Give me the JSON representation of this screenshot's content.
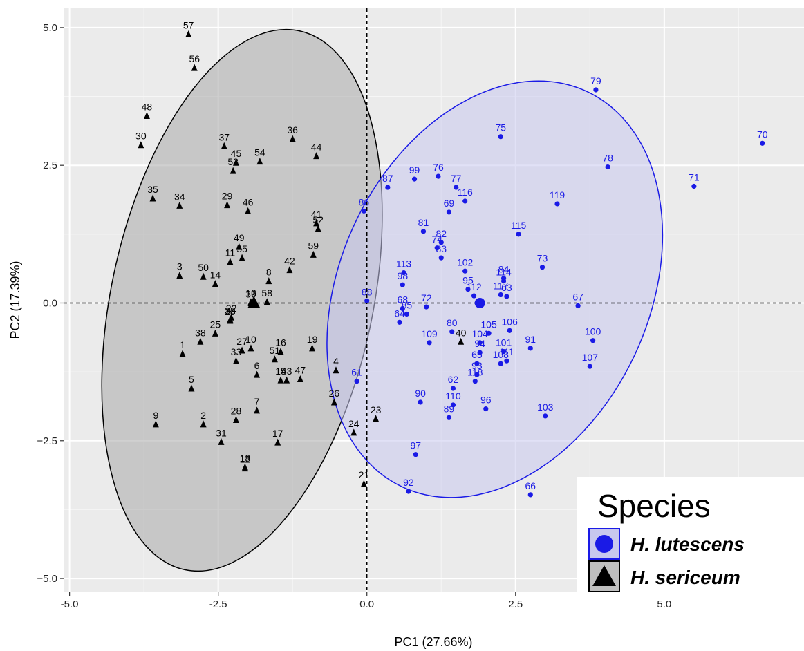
{
  "chart_data": {
    "type": "scatter",
    "xlabel": "PC1 (27.66%)",
    "ylabel": "PC2 (17.39%)",
    "xlim": [
      -5.1,
      7.35
    ],
    "ylim": [
      -5.25,
      5.35
    ],
    "x_ticks": [
      -5.0,
      -2.5,
      0.0,
      2.5,
      5.0
    ],
    "x_tick_labels": [
      "-5.0",
      "-2.5",
      "0.0",
      "2.5",
      "5.0"
    ],
    "y_ticks": [
      -5.0,
      -2.5,
      0.0,
      2.5,
      5.0
    ],
    "y_tick_labels": [
      "−5.0",
      "−2.5",
      "0.0",
      "2.5",
      "5.0"
    ],
    "grid": true,
    "reference_lines": {
      "x": 0,
      "y": 0,
      "style": "dashed"
    },
    "legend": {
      "title": "Species",
      "position": "bottom-right",
      "entries": [
        {
          "label": "H. lutescens",
          "marker": "circle",
          "color": "#1a1ae6"
        },
        {
          "label": "H. sericeum",
          "marker": "triangle",
          "color": "#000000"
        }
      ]
    },
    "series": [
      {
        "name": "H. lutescens",
        "marker": "circle",
        "color": "#1a1ae6",
        "fill": "#c8c8ee",
        "ellipse": {
          "center": [
            2.15,
            0.25
          ],
          "rx": 2.6,
          "ry": 3.96,
          "rotation": 25,
          "edge": "#1a1ae6"
        },
        "centroid": [
          1.9,
          0.0
        ],
        "points": [
          {
            "id": "61",
            "x": -0.17,
            "y": -1.42
          },
          {
            "id": "62",
            "x": 1.45,
            "y": -1.55
          },
          {
            "id": "63",
            "x": 2.35,
            "y": 0.12
          },
          {
            "id": "64",
            "x": 0.55,
            "y": -0.35
          },
          {
            "id": "65",
            "x": 1.85,
            "y": -1.1
          },
          {
            "id": "66",
            "x": 2.75,
            "y": -3.48
          },
          {
            "id": "67",
            "x": 3.55,
            "y": -0.05
          },
          {
            "id": "68",
            "x": 0.6,
            "y": -0.1
          },
          {
            "id": "69",
            "x": 1.38,
            "y": 1.65
          },
          {
            "id": "70",
            "x": 6.65,
            "y": 2.9
          },
          {
            "id": "71",
            "x": 5.5,
            "y": 2.12
          },
          {
            "id": "72",
            "x": 1.0,
            "y": -0.07
          },
          {
            "id": "73",
            "x": 2.95,
            "y": 0.65
          },
          {
            "id": "74",
            "x": 1.18,
            "y": 1.0
          },
          {
            "id": "75",
            "x": 2.25,
            "y": 3.02
          },
          {
            "id": "76",
            "x": 1.2,
            "y": 2.3
          },
          {
            "id": "77",
            "x": 1.5,
            "y": 2.1
          },
          {
            "id": "78",
            "x": 4.05,
            "y": 2.47
          },
          {
            "id": "79",
            "x": 3.85,
            "y": 3.87
          },
          {
            "id": "80",
            "x": 1.43,
            "y": -0.52
          },
          {
            "id": "81",
            "x": 0.95,
            "y": 1.3
          },
          {
            "id": "82",
            "x": 1.25,
            "y": 1.1
          },
          {
            "id": "83",
            "x": 1.25,
            "y": 0.82
          },
          {
            "id": "84",
            "x": 2.3,
            "y": 0.45
          },
          {
            "id": "85",
            "x": 0.67,
            "y": -0.2
          },
          {
            "id": "86",
            "x": -0.05,
            "y": 1.67
          },
          {
            "id": "87",
            "x": 0.35,
            "y": 2.1
          },
          {
            "id": "88",
            "x": 0.0,
            "y": 0.04
          },
          {
            "id": "89",
            "x": 1.38,
            "y": -2.08
          },
          {
            "id": "90",
            "x": 0.9,
            "y": -1.8
          },
          {
            "id": "91",
            "x": 2.75,
            "y": -0.82
          },
          {
            "id": "92",
            "x": 0.7,
            "y": -3.42
          },
          {
            "id": "93",
            "x": 1.85,
            "y": -1.3
          },
          {
            "id": "94",
            "x": 1.9,
            "y": -0.9
          },
          {
            "id": "95",
            "x": 1.7,
            "y": 0.25
          },
          {
            "id": "96",
            "x": 2.0,
            "y": -1.92
          },
          {
            "id": "97",
            "x": 0.82,
            "y": -2.75
          },
          {
            "id": "98",
            "x": 0.6,
            "y": 0.33
          },
          {
            "id": "99",
            "x": 0.8,
            "y": 2.25
          },
          {
            "id": "100",
            "x": 3.8,
            "y": -0.68
          },
          {
            "id": "101",
            "x": 2.3,
            "y": -0.88
          },
          {
            "id": "102",
            "x": 1.65,
            "y": 0.58
          },
          {
            "id": "103",
            "x": 3.0,
            "y": -2.05
          },
          {
            "id": "104",
            "x": 1.9,
            "y": -0.72
          },
          {
            "id": "105",
            "x": 2.05,
            "y": -0.55
          },
          {
            "id": "106",
            "x": 2.4,
            "y": -0.5
          },
          {
            "id": "107",
            "x": 3.75,
            "y": -1.15
          },
          {
            "id": "108",
            "x": 2.25,
            "y": -1.1
          },
          {
            "id": "109",
            "x": 1.05,
            "y": -0.72
          },
          {
            "id": "110",
            "x": 1.45,
            "y": -1.85
          },
          {
            "id": "111",
            "x": 2.35,
            "y": -1.05
          },
          {
            "id": "112",
            "x": 1.8,
            "y": 0.13
          },
          {
            "id": "113",
            "x": 0.62,
            "y": 0.55
          },
          {
            "id": "114",
            "x": 2.3,
            "y": 0.4
          },
          {
            "id": "115",
            "x": 2.55,
            "y": 1.25
          },
          {
            "id": "116",
            "x": 1.65,
            "y": 1.85
          },
          {
            "id": "117",
            "x": 2.25,
            "y": 0.15
          },
          {
            "id": "118",
            "x": 1.82,
            "y": -1.42
          },
          {
            "id": "119",
            "x": 3.2,
            "y": 1.8
          }
        ]
      },
      {
        "name": "H. sericeum",
        "marker": "triangle",
        "color": "#000000",
        "fill": "#a9a9a9",
        "ellipse": {
          "center": [
            -2.1,
            0.05
          ],
          "rx": 2.2,
          "ry": 5.0,
          "rotation": 12,
          "edge": "#000000"
        },
        "centroid": [
          -1.9,
          0.0
        ],
        "points": [
          {
            "id": "1",
            "x": -3.1,
            "y": -0.92
          },
          {
            "id": "2",
            "x": -2.75,
            "y": -2.2
          },
          {
            "id": "3",
            "x": -3.15,
            "y": 0.5
          },
          {
            "id": "4",
            "x": -0.52,
            "y": -1.22
          },
          {
            "id": "5",
            "x": -2.95,
            "y": -1.55
          },
          {
            "id": "6",
            "x": -1.85,
            "y": -1.3
          },
          {
            "id": "7",
            "x": -1.85,
            "y": -1.95
          },
          {
            "id": "8",
            "x": -1.65,
            "y": 0.4
          },
          {
            "id": "9",
            "x": -3.55,
            "y": -2.2
          },
          {
            "id": "10",
            "x": -1.95,
            "y": -0.82
          },
          {
            "id": "11",
            "x": -2.3,
            "y": 0.75
          },
          {
            "id": "12",
            "x": -2.05,
            "y": -3.0
          },
          {
            "id": "13",
            "x": -1.95,
            "y": 0.02
          },
          {
            "id": "14",
            "x": -2.55,
            "y": 0.35
          },
          {
            "id": "15",
            "x": -1.45,
            "y": -1.4
          },
          {
            "id": "16",
            "x": -1.45,
            "y": -0.88
          },
          {
            "id": "17",
            "x": -1.5,
            "y": -2.53
          },
          {
            "id": "18",
            "x": -2.05,
            "y": -2.98
          },
          {
            "id": "19",
            "x": -0.92,
            "y": -0.82
          },
          {
            "id": "20",
            "x": -2.3,
            "y": -0.32
          },
          {
            "id": "21",
            "x": -0.05,
            "y": -3.28
          },
          {
            "id": "22",
            "x": -2.28,
            "y": -0.26
          },
          {
            "id": "23",
            "x": 0.15,
            "y": -2.1
          },
          {
            "id": "24",
            "x": -0.22,
            "y": -2.35
          },
          {
            "id": "25",
            "x": -2.55,
            "y": -0.55
          },
          {
            "id": "26",
            "x": -0.55,
            "y": -1.8
          },
          {
            "id": "27",
            "x": -2.1,
            "y": -0.86
          },
          {
            "id": "28",
            "x": -2.2,
            "y": -2.12
          },
          {
            "id": "29",
            "x": -2.35,
            "y": 1.78
          },
          {
            "id": "30",
            "x": -3.8,
            "y": 2.87
          },
          {
            "id": "31",
            "x": -2.45,
            "y": -2.52
          },
          {
            "id": "32",
            "x": -2.3,
            "y": -0.3
          },
          {
            "id": "33",
            "x": -2.2,
            "y": -1.05
          },
          {
            "id": "34",
            "x": -3.15,
            "y": 1.77
          },
          {
            "id": "35",
            "x": -3.6,
            "y": 1.9
          },
          {
            "id": "36",
            "x": -1.25,
            "y": 2.98
          },
          {
            "id": "37",
            "x": -2.4,
            "y": 2.85
          },
          {
            "id": "38",
            "x": -2.8,
            "y": -0.7
          },
          {
            "id": "39",
            "x": -1.95,
            "y": 0.0
          },
          {
            "id": "40",
            "x": 1.58,
            "y": -0.7
          },
          {
            "id": "41",
            "x": -0.85,
            "y": 1.45
          },
          {
            "id": "42",
            "x": -1.3,
            "y": 0.6
          },
          {
            "id": "43",
            "x": -1.35,
            "y": -1.4
          },
          {
            "id": "44",
            "x": -0.85,
            "y": 2.67
          },
          {
            "id": "45",
            "x": -2.2,
            "y": 2.55
          },
          {
            "id": "46",
            "x": -2.0,
            "y": 1.67
          },
          {
            "id": "47",
            "x": -1.12,
            "y": -1.38
          },
          {
            "id": "48",
            "x": -3.7,
            "y": 3.4
          },
          {
            "id": "49",
            "x": -2.15,
            "y": 1.02
          },
          {
            "id": "50",
            "x": -2.75,
            "y": 0.48
          },
          {
            "id": "51",
            "x": -1.55,
            "y": -1.02
          },
          {
            "id": "52",
            "x": -0.82,
            "y": 1.35
          },
          {
            "id": "53",
            "x": -2.25,
            "y": 2.4
          },
          {
            "id": "54",
            "x": -1.8,
            "y": 2.57
          },
          {
            "id": "55",
            "x": -2.1,
            "y": 0.82
          },
          {
            "id": "56",
            "x": -2.9,
            "y": 4.27
          },
          {
            "id": "57",
            "x": -3.0,
            "y": 4.88
          },
          {
            "id": "58",
            "x": -1.68,
            "y": 0.02
          },
          {
            "id": "59",
            "x": -0.9,
            "y": 0.88
          }
        ]
      }
    ]
  }
}
